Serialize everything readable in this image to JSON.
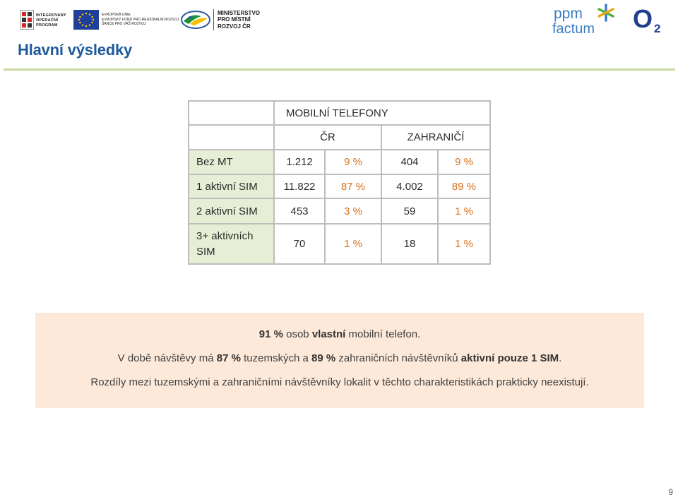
{
  "header": {
    "iop_logo_lines": [
      "INTEGROVANÝ",
      "OPERAČNÍ",
      "PROGRAM"
    ],
    "eu_text_lines": [
      "EVROPSKÁ UNIE",
      "EVROPSKÝ FOND PRO REGIONÁLNÍ ROZVOJ",
      "ŠANCE PRO VÁŠ ROZVOJ"
    ],
    "ministry_lines": [
      "MINISTERSTVO",
      "PRO MÍSTNÍ",
      "ROZVOJ ČR"
    ],
    "ppm_logo_lines": [
      "ppm",
      "factum"
    ],
    "o2_logo": "O2",
    "colors": {
      "eu_blue": "#1f3f9a",
      "eu_stars": "#ffdd00",
      "ppm_blue": "#3b7cc4",
      "o2_blue": "#1f3f8f"
    }
  },
  "title": "Hlavní výsledky",
  "table": {
    "group_header": "MOBILNÍ TELEFONY",
    "col_headers": [
      "ČR",
      "ZAHRANIČÍ"
    ],
    "rows": [
      {
        "label": "Bez MT",
        "cr_count": "1.212",
        "cr_pct": "9 %",
        "abroad_count": "404",
        "abroad_pct": "9 %"
      },
      {
        "label": "1 aktivní SIM",
        "cr_count": "11.822",
        "cr_pct": "87 %",
        "abroad_count": "4.002",
        "abroad_pct": "89 %"
      },
      {
        "label": "2 aktivní SIM",
        "cr_count": "453",
        "cr_pct": "3 %",
        "abroad_count": "59",
        "abroad_pct": "1 %"
      },
      {
        "label": "3+ aktivních SIM",
        "cr_count": "70",
        "cr_pct": "1 %",
        "abroad_count": "18",
        "abroad_pct": "1 %"
      }
    ],
    "colors": {
      "label_bg": "#e6efd5",
      "pct_text": "#d7711c",
      "border": "#bdbdbd"
    }
  },
  "summary": {
    "line1": {
      "b1": "91 %",
      "t1": " osob ",
      "b2": "vlastní",
      "t2": " mobilní telefon."
    },
    "line2": {
      "t1": "V době návštěvy má ",
      "b1": "87 %",
      "t2": " tuzemských a ",
      "b2": "89 %",
      "t3": " zahraničních návštěvníků ",
      "b3": "aktivní pouze 1 SIM",
      "t4": "."
    },
    "line3": "Rozdíly mezi tuzemskými a zahraničními návštěvníky lokalit v těchto charakteristikách prakticky neexistují.",
    "background": "#fde9d9"
  },
  "page_number": "9"
}
